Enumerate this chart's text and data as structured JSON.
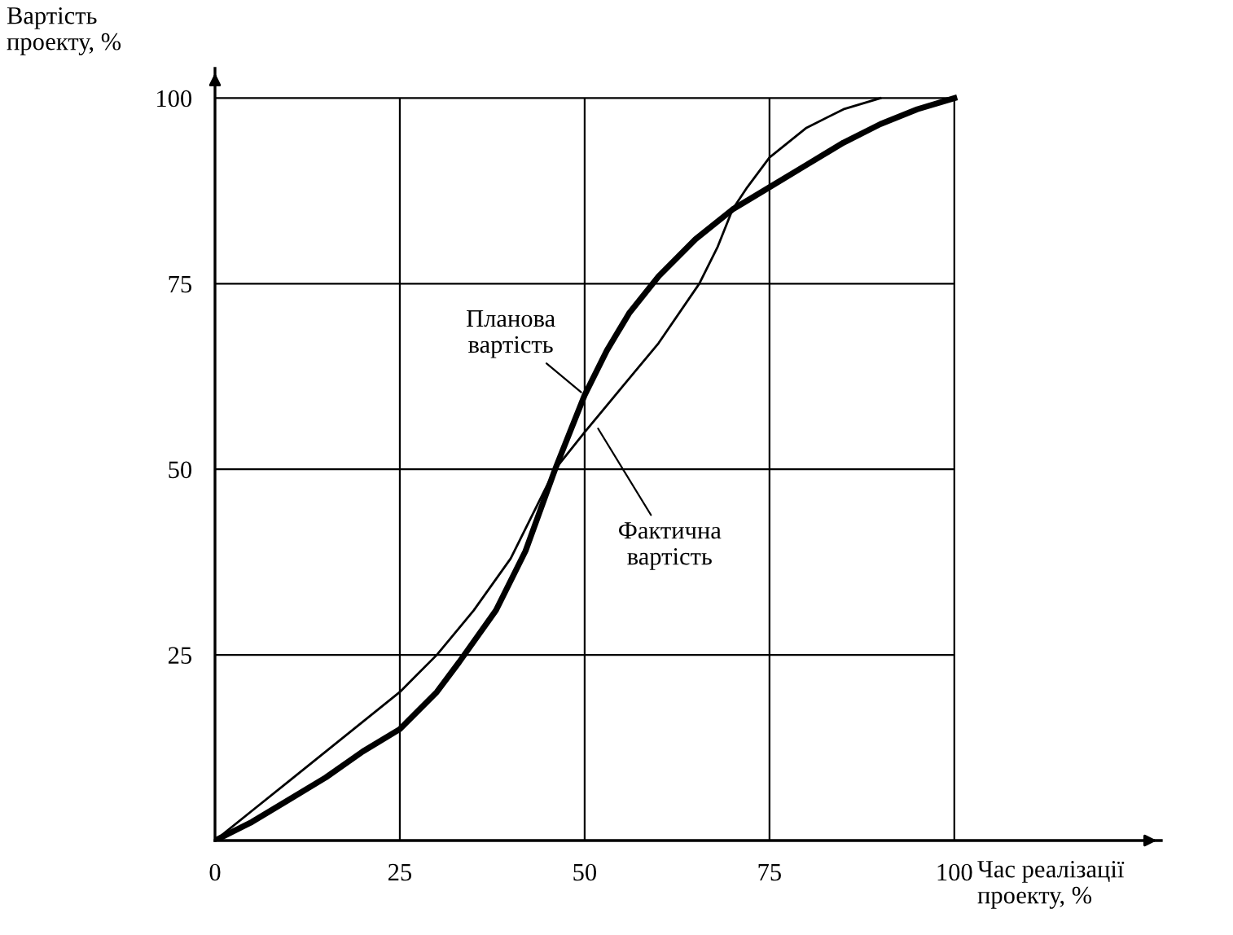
{
  "chart_data": {
    "type": "line",
    "xlabel": "Час реалізації\nпроекту, %",
    "ylabel": "Вартість\nпроекту, %",
    "xlim": [
      0,
      128
    ],
    "ylim": [
      0,
      104
    ],
    "xticks": [
      0,
      25,
      50,
      75,
      100
    ],
    "yticks": [
      {
        "value": 0,
        "label": null
      },
      25,
      50,
      75,
      100
    ],
    "grid": true,
    "legend": false,
    "marker": "none",
    "line_style": "solid",
    "series": [
      {
        "color": "#000000",
        "x": [
          0,
          5,
          10,
          15,
          20,
          25,
          30,
          33,
          38,
          42,
          46,
          48,
          50,
          53,
          56,
          60,
          65,
          70,
          75,
          80,
          85,
          90,
          95,
          100
        ],
        "values": [
          0,
          2.5,
          5.5,
          8.5,
          12,
          15,
          20,
          24,
          31,
          39,
          50,
          55,
          60,
          66,
          71,
          76,
          81,
          85,
          88,
          91,
          94,
          96.5,
          98.5,
          100
        ]
      },
      {
        "color": "#000000",
        "x": [
          0,
          5,
          10,
          15,
          20,
          25,
          30,
          35,
          40,
          46,
          50,
          55,
          60,
          65.5,
          68,
          70,
          72,
          75,
          80,
          85,
          90
        ],
        "values": [
          0,
          4,
          8,
          12,
          16,
          20,
          25,
          31,
          38,
          50,
          55,
          61,
          67,
          75,
          80,
          85,
          88,
          92,
          96,
          98.5,
          100
        ]
      }
    ],
    "annotations": [
      {
        "text": "Планова\nвартість",
        "x": 50,
        "y": 60
      },
      {
        "text": "Фактична\nвартість",
        "x": 51.5,
        "y": 56
      }
    ]
  }
}
